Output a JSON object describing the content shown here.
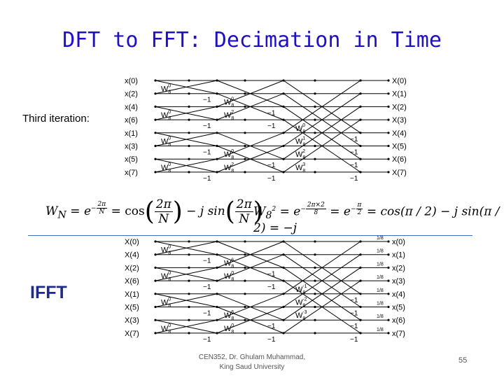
{
  "title": "DFT to FFT: Decimation in Time",
  "third_iteration_label": "Third iteration:",
  "ifft_label": "IFFT",
  "footer": {
    "line1": "CEN352, Dr. Ghulam Muhammad,",
    "line2": "King Saud University",
    "page_number": "55"
  },
  "equations": {
    "left": {
      "lhs": "W",
      "lhs_sub": "N",
      "exp_base": "e",
      "exp_num": "2π",
      "exp_den": "N",
      "cos_num": "2π",
      "cos_den": "N",
      "j_sin": "j sin",
      "cos": "cos"
    },
    "right": {
      "lhs": "W",
      "lhs_sub": "8",
      "lhs_sup": "2",
      "exp1_num": "2π×2",
      "exp1_den": "8",
      "exp2_num": "π",
      "exp2_den": "2",
      "rhs": "cos(π / 2) − j sin(π / 2) = −j"
    }
  },
  "top_inputs": [
    "x(0)",
    "x(2)",
    "x(4)",
    "x(6)",
    "x(1)",
    "x(3)",
    "x(5)",
    "x(7)"
  ],
  "top_outputs": [
    "X(0)",
    "X(1)",
    "X(2)",
    "X(3)",
    "X(4)",
    "X(5)",
    "X(6)",
    "X(7)"
  ],
  "bot_inputs": [
    "X(0)",
    "X(4)",
    "X(2)",
    "X(6)",
    "X(1)",
    "X(5)",
    "X(3)",
    "X(7)"
  ],
  "bot_outputs": [
    "x(0)",
    "x(1)",
    "x(2)",
    "x(3)",
    "x(4)",
    "x(5)",
    "x(6)",
    "x(7)"
  ],
  "twiddles_top": [
    "W8^0",
    "W8^0",
    "W8^0",
    "W8^0",
    "W8^0",
    "W8^2",
    "W8^0",
    "W8^2",
    "W8^0",
    "W8^1",
    "W8^2",
    "W8^3"
  ],
  "twiddles_bot": [
    "W8^0",
    "W8^0",
    "W8^0",
    "W8^0",
    "W8^6",
    "W8^0",
    "W8^6",
    "W8^0",
    "W8^-1",
    "W8^-2",
    "W8^-3"
  ],
  "minus_one": "−1",
  "one": "1",
  "scale_factor": "1/8"
}
